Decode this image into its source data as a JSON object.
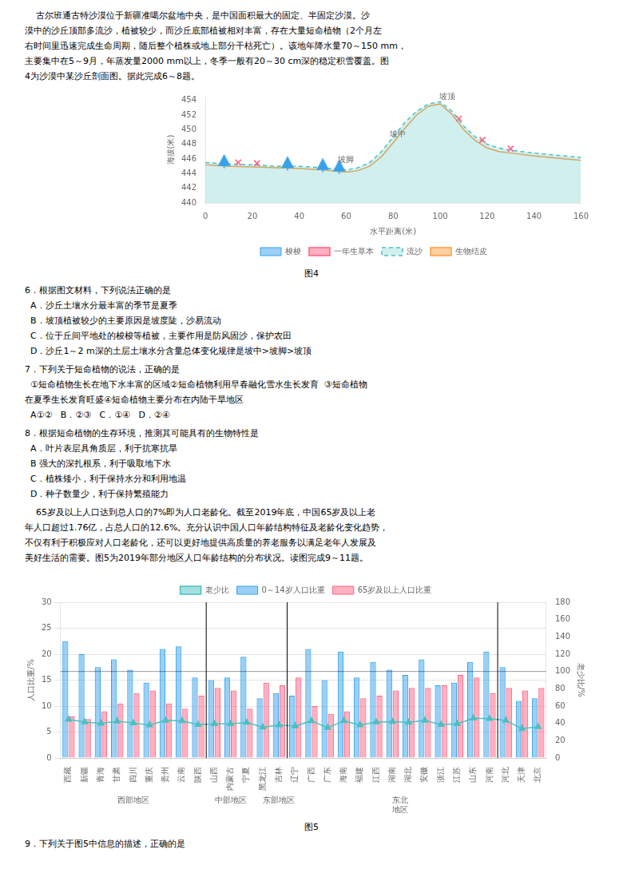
{
  "chart_data": [
    {
      "type": "line",
      "title": "图4",
      "text_before": [
        "    古尔班通古特沙漠位于新疆准噶尔盆地中央，是中国面积最大的固定、半固定沙漠。沙",
        "漠中的沙丘顶部多流沙，植被较少，而沙丘底部植被相对丰富，存在大量短命植物（2个月左",
        "右时间里迅速完成生命周期，随后整个植株或地上部分干枯死亡）。该地年降水量70～150 mm，",
        "主要集中在5～9月，年蒸发量2000 mm以上，冬季一般有20～30 cm深的稳定积雪覆盖。图",
        "4为沙漠中某沙丘剖面图。据此完成6～8题。"
      ],
      "text_after": [
        [
          "6．根据图文材料，下列说法正确的是",
          "  A．沙丘土壤水分最丰富的季节是夏季",
          "  B．坡顶植被较少的主要原因是坡度陡，沙易流动",
          "  C．位于丘间平地处的梭梭等植被，主要作用是防风固沙，保护农田",
          "  D．沙丘1～2 m深的土层土壤水分含量总体变化规律是坡中>坡脚>坡顶"
        ],
        [
          "7．下列关于短命植物的说法，正确的是",
          "  ①短命植物生长在地下水丰富的区域②短命植物利用早春融化雪水生长发育  ③短命植物",
          "在夏季生长发育旺盛④短命植物主要分布在内陆干旱地区",
          "  A①②   B．②③   C．①④   D．②④"
        ],
        [
          "8．根据短命植物的生存环境，推测其可能具有的生物特性是",
          "  A．叶片表层具角质层，利于抗寒抗旱",
          "  B 强大的深扎根系，利于吸取地下水",
          "  C．植株矮小，利于保持水分和利用地温",
          "  D．种子数量少，利于保持繁殖能力"
        ],
        [
          "    65岁及以上人口达到总人口的7%即为人口老龄化。截至2019年底，中国65岁及以上老",
          "年人口超过1.76亿，占总人口的12.6%。充分认识中国人口年龄结构特征及老龄化变化趋势，",
          "不仅有利于积极应对人口老龄化，还可以更好地提供高质量的养老服务以满足老年人发展及",
          "美好生活的需要。图5为2019年部分地区人口年龄结构的分布状况。读图完成9～11题。"
        ]
      ],
      "x_label": "水平距离(米)",
      "y_label": "海拔(米)",
      "x": [
        0,
        10,
        20,
        30,
        40,
        50,
        60,
        65,
        70,
        75,
        80,
        85,
        90,
        95,
        100,
        105,
        110,
        115,
        120,
        125,
        130,
        140,
        150,
        160
      ],
      "series": [
        {
          "name": "梭梭",
          "type": "scatter",
          "marker": "triangle",
          "x": [
            8,
            35,
            50,
            57
          ],
          "values": [
            445.04,
            444.75,
            444.5,
            444.29
          ]
        },
        {
          "name": "一年生草本",
          "type": "scatter",
          "marker": "x",
          "x": [
            14,
            22,
            108,
            118,
            130
          ],
          "values": [
            445.51,
            445.41,
            451.5,
            448.6,
            447.4
          ]
        },
        {
          "name": "流沙",
          "type": "area",
          "line_style": "dashed",
          "values": [
            445.5,
            445.3,
            445.2,
            445.0,
            445.0,
            444.8,
            444.5,
            444.8,
            445.5,
            447.0,
            449.0,
            451.0,
            452.5,
            453.5,
            453.8,
            452.5,
            450.5,
            449.0,
            448.0,
            447.5,
            447.2,
            446.8,
            446.5,
            446.2
          ]
        },
        {
          "name": "生物结皮",
          "type": "line",
          "line_style": "solid",
          "values": [
            445.2,
            445.0,
            444.9,
            444.8,
            444.7,
            444.5,
            444.2,
            444.4,
            445.0,
            446.3,
            448.2,
            450.2,
            452.0,
            453.2,
            453.5,
            452.1,
            450.0,
            448.5,
            447.5,
            447.0,
            446.8,
            446.4,
            446.1,
            445.8
          ]
        }
      ],
      "xlim": [
        0,
        160
      ],
      "xticks": [
        0,
        20,
        40,
        60,
        80,
        100,
        120,
        140,
        160
      ],
      "ylim": [
        440,
        454.5
      ],
      "yticks": [
        440,
        442,
        444,
        446,
        448,
        450,
        452,
        454
      ],
      "grid": false,
      "legend": "bottom",
      "annotations": [
        {
          "text": "坡脚",
          "x": 60,
          "y": 445.6
        },
        {
          "text": "坡中",
          "x": 82,
          "y": 449.0
        },
        {
          "text": "坡顶",
          "x": 103,
          "y": 454.2
        }
      ]
    },
    {
      "type": "bar",
      "title": "图5",
      "text_after": [
        [
          "9．下列关于图5中信息的描述，正确的是"
        ]
      ],
      "categories": [
        "西藏",
        "新疆",
        "青海",
        "甘肃",
        "四川",
        "重庆",
        "贵州",
        "云南",
        "陕西",
        "山西",
        "内蒙古",
        "宁夏",
        "黑龙江",
        "吉林",
        "辽宁",
        "广西",
        "广东",
        "海南",
        "福建",
        "江西",
        "湖南",
        "湖北",
        "安徽",
        "浙江",
        "江苏",
        "山东",
        "河南",
        "河北",
        "天津",
        "北京"
      ],
      "series": [
        {
          "name": "0～14岁人口比重",
          "type": "bar",
          "values": [
            22.5,
            20.0,
            17.5,
            19.0,
            17.0,
            14.5,
            21.0,
            21.5,
            15.5,
            15.0,
            15.5,
            19.5,
            11.5,
            12.5,
            12.0,
            21.0,
            15.0,
            20.5,
            15.5,
            18.5,
            17.0,
            16.0,
            19.0,
            14.0,
            14.5,
            18.5,
            20.5,
            17.5,
            11.0,
            11.5
          ]
        },
        {
          "name": "65岁及以上人口比重",
          "type": "bar",
          "values": [
            8.0,
            7.5,
            9.0,
            10.5,
            12.5,
            13.0,
            10.5,
            9.5,
            12.0,
            13.5,
            13.0,
            9.5,
            14.5,
            14.0,
            15.5,
            10.0,
            8.5,
            9.0,
            11.5,
            12.0,
            13.0,
            13.5,
            13.5,
            14.0,
            16.0,
            15.5,
            12.5,
            13.5,
            13.0,
            13.5
          ]
        },
        {
          "name": "老少比",
          "type": "line",
          "axis": "y2",
          "marker": "triangle",
          "values": [
            44.5,
            41.5,
            40.0,
            42.5,
            40.5,
            38.0,
            43.5,
            43.0,
            38.5,
            39.5,
            39.5,
            41.0,
            35.5,
            38.0,
            37.0,
            43.0,
            35.0,
            43.0,
            38.0,
            41.5,
            42.0,
            41.0,
            43.5,
            38.5,
            39.5,
            46.0,
            45.5,
            43.5,
            34.0,
            36.0
          ]
        }
      ],
      "y_label": "人口比重/%",
      "y2_label": "老少比/%",
      "ylim": [
        0,
        30
      ],
      "yticks": [
        0,
        5,
        10,
        15,
        20,
        25,
        30
      ],
      "y2lim": [
        0,
        180
      ],
      "y2ticks": [
        0,
        20,
        40,
        60,
        80,
        100,
        120,
        140,
        160,
        180
      ],
      "grid": true,
      "legend": "top",
      "annotations": [
        {
          "type": "hline",
          "axis": "y2",
          "y": 100
        },
        {
          "type": "vline",
          "after": "陕西"
        },
        {
          "type": "vline",
          "after": "吉林"
        },
        {
          "type": "vline",
          "after": "河南"
        },
        {
          "text": "西部地区",
          "from": "西藏",
          "to": "陕西"
        },
        {
          "text": "中部地区",
          "from": "山西",
          "to": "宁夏"
        },
        {
          "text": "东部地区",
          "from": "黑龙江",
          "to": "辽宁"
        },
        {
          "text": "东北\n地区",
          "from": "广西",
          "to": "河南"
        }
      ]
    }
  ]
}
